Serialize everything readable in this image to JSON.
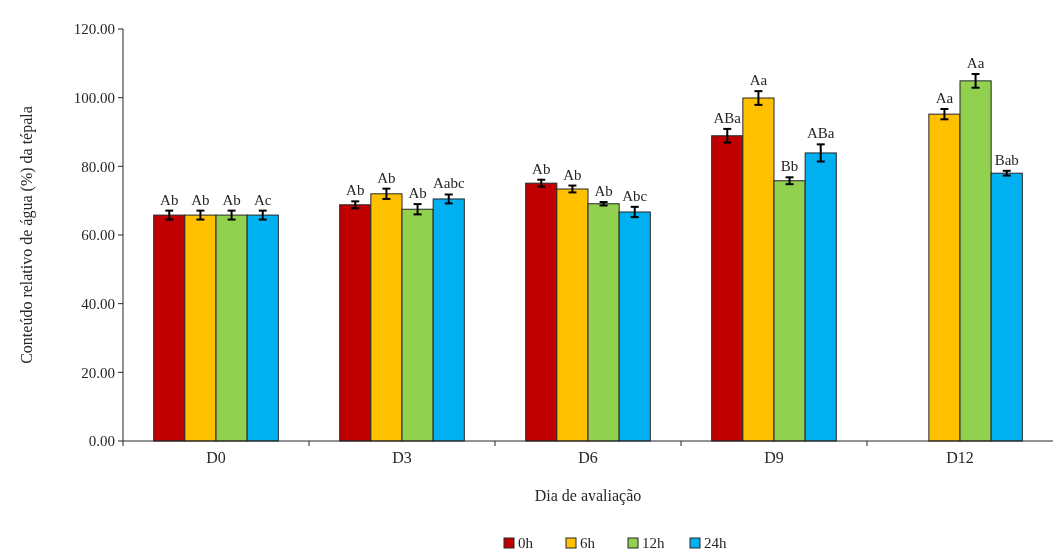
{
  "chart_data": {
    "type": "bar",
    "xlabel": "Dia de avaliação",
    "ylabel": "Conteúdo relativo de água (%) da tépala",
    "categories": [
      "D0",
      "D3",
      "D6",
      "D9",
      "D12"
    ],
    "series": [
      {
        "name": "0h",
        "color": "#c00000",
        "values": [
          65.8,
          68.8,
          75.1,
          88.9,
          null
        ],
        "errors": [
          1.3,
          1,
          1,
          2,
          null
        ],
        "value_labels": [
          "Ab",
          "Ab",
          "Ab",
          "ABa",
          null
        ]
      },
      {
        "name": "6h",
        "color": "#ffc000",
        "values": [
          65.8,
          72.0,
          73.4,
          99.9,
          95.2
        ],
        "errors": [
          1.3,
          1.5,
          1,
          2,
          1.5
        ],
        "value_labels": [
          "Ab",
          "Ab",
          "Ab",
          "Aa",
          "Aa"
        ]
      },
      {
        "name": "12h",
        "color": "#92d050",
        "values": [
          65.8,
          67.5,
          69.1,
          75.8,
          104.9
        ],
        "errors": [
          1.3,
          1.5,
          0.5,
          1,
          2
        ],
        "value_labels": [
          "Ab",
          "Ab",
          "Ab",
          "Bb",
          "Aa"
        ]
      },
      {
        "name": "24h",
        "color": "#00b0f0",
        "values": [
          65.8,
          70.5,
          66.7,
          83.9,
          78.0
        ],
        "errors": [
          1.3,
          1.3,
          1.5,
          2.5,
          0.7
        ],
        "value_labels": [
          "Ac",
          "Aabc",
          "Abc",
          "ABa",
          "Bab"
        ]
      }
    ],
    "ylim": [
      0,
      120
    ],
    "yticks": [
      {
        "value": 0,
        "label": "0.00"
      },
      {
        "value": 20,
        "label": "20.00"
      },
      {
        "value": 40,
        "label": "40.00"
      },
      {
        "value": 60,
        "label": "60.00"
      },
      {
        "value": 80,
        "label": "80.00"
      },
      {
        "value": 100,
        "label": "100.00"
      },
      {
        "value": 120,
        "label": "120.00"
      }
    ],
    "legend": "bottom"
  }
}
